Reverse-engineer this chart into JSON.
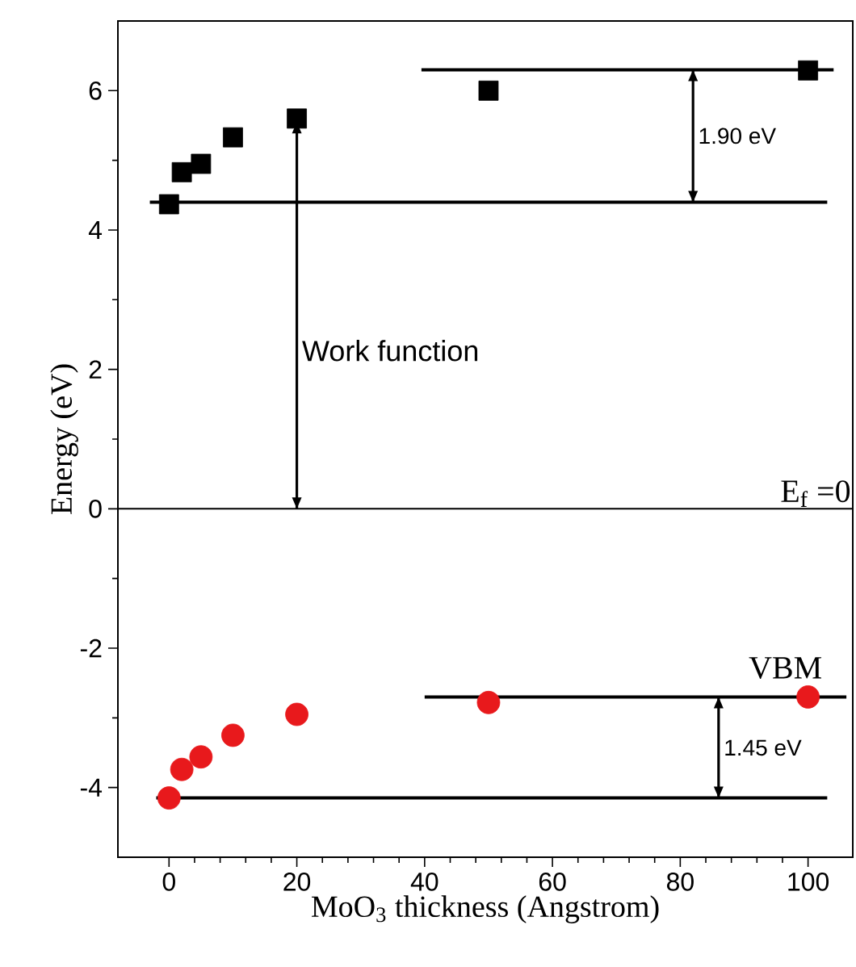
{
  "chart_data": {
    "type": "scatter",
    "xlabel": "MoO$_{3}$ thickness (Angstrom)",
    "ylabel": "Energy (eV)",
    "xlim": [
      -8,
      107
    ],
    "ylim": [
      -5,
      7
    ],
    "xticks": [
      0,
      20,
      40,
      60,
      80,
      100
    ],
    "yticks": [
      -4,
      -2,
      0,
      2,
      4,
      6
    ],
    "grid": false,
    "line_style": "solid",
    "series": [
      {
        "color": "#000000",
        "marker": "square",
        "x": [
          0,
          2,
          5,
          10,
          20,
          50,
          100
        ],
        "values": [
          4.37,
          4.83,
          4.95,
          5.33,
          5.6,
          6.0,
          6.29
        ]
      },
      {
        "color": "#e8191c",
        "marker": "circle",
        "x": [
          0,
          2,
          5,
          10,
          20,
          50,
          100
        ],
        "values": [
          -4.15,
          -3.74,
          -3.56,
          -3.25,
          -2.95,
          -2.78,
          -2.7
        ]
      },
      {
        "type": "line",
        "color": "#000000",
        "x": [
          -3,
          103
        ],
        "values": [
          4.4,
          4.4
        ]
      },
      {
        "type": "line",
        "color": "#000000",
        "x": [
          39.5,
          104
        ],
        "values": [
          6.3,
          6.3
        ]
      },
      {
        "type": "line",
        "color": "#000000",
        "x": [
          -2,
          103
        ],
        "values": [
          -4.15,
          -4.15
        ]
      },
      {
        "type": "line",
        "color": "#000000",
        "x": [
          40,
          106
        ],
        "values": [
          -2.7,
          -2.7
        ]
      },
      {
        "type": "line",
        "color": "#000000",
        "x": [
          20,
          20
        ],
        "values": [
          0,
          5.55
        ]
      },
      {
        "type": "line",
        "color": "#000000",
        "x": [
          82,
          82
        ],
        "values": [
          4.4,
          6.3
        ]
      },
      {
        "type": "line",
        "color": "#000000",
        "x": [
          86,
          86
        ],
        "values": [
          -4.15,
          -2.7
        ]
      }
    ],
    "ref_lines": [
      {
        "axis": "y",
        "value": 0,
        "label": "E$_{f}$ =0"
      }
    ],
    "annotations": [
      {
        "text": "Work function",
        "x": 20,
        "y": 2.27
      },
      {
        "text": "1.90 eV",
        "x": 82,
        "y": 5.35
      },
      {
        "text": "1.45 eV",
        "x": 86,
        "y": -3.43
      },
      {
        "text": "VBM",
        "x": 100,
        "y": -2.7
      }
    ]
  }
}
